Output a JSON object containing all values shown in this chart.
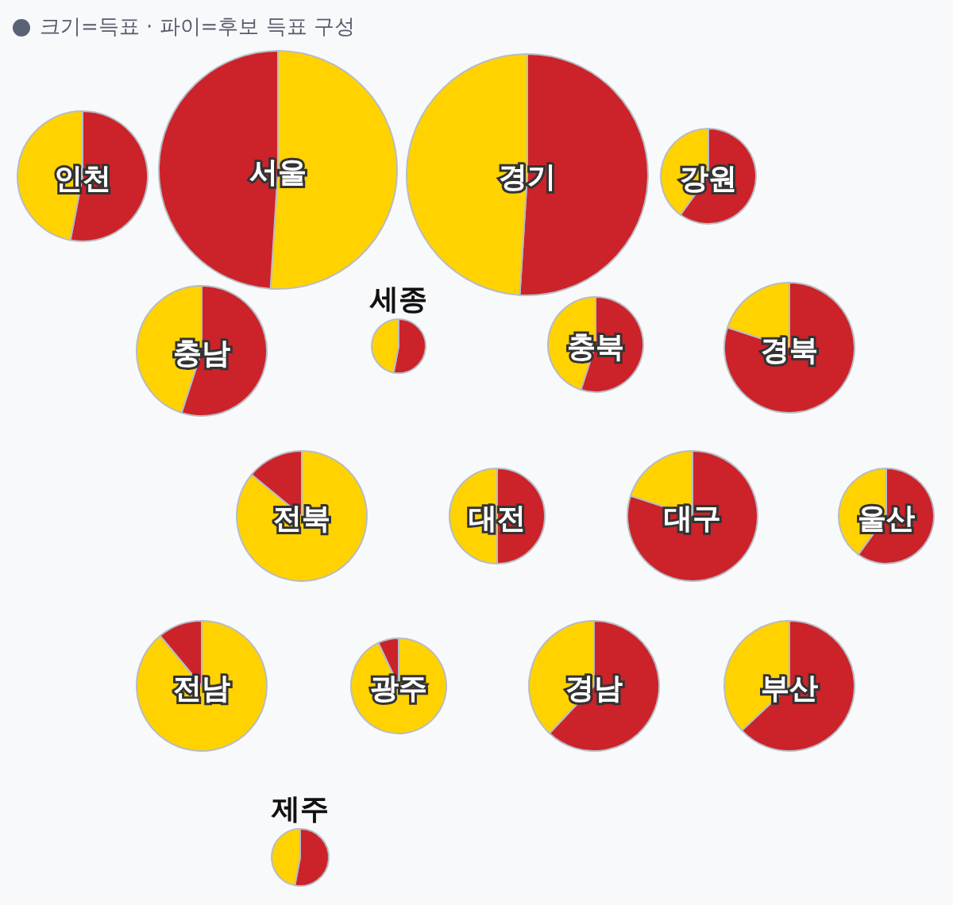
{
  "chart_data": [
    {
      "type": "pie",
      "title": "인천",
      "categories": [
        null,
        null
      ],
      "values": [
        53,
        47
      ],
      "colors": [
        "#cc2229",
        "#ffd200"
      ],
      "annotations": [
        "크기=득표 · 파이=후보 득표 구성"
      ]
    },
    {
      "type": "pie",
      "title": "서울",
      "categories": [
        null,
        null
      ],
      "values": [
        51,
        49
      ],
      "colors": [
        "#ffd200",
        "#cc2229"
      ]
    },
    {
      "type": "pie",
      "title": "경기",
      "categories": [
        null,
        null
      ],
      "values": [
        51,
        49
      ],
      "colors": [
        "#cc2229",
        "#ffd200"
      ]
    },
    {
      "type": "pie",
      "title": "강원",
      "categories": [
        null,
        null
      ],
      "values": [
        60,
        40
      ],
      "colors": [
        "#cc2229",
        "#ffd200"
      ]
    },
    {
      "type": "pie",
      "title": "충남",
      "categories": [
        null,
        null
      ],
      "values": [
        55,
        45
      ],
      "colors": [
        "#cc2229",
        "#ffd200"
      ]
    },
    {
      "type": "pie",
      "title": "세종",
      "categories": [
        null,
        null
      ],
      "values": [
        53,
        47
      ],
      "colors": [
        "#cc2229",
        "#ffd200"
      ]
    },
    {
      "type": "pie",
      "title": "충북",
      "categories": [
        null,
        null
      ],
      "values": [
        55,
        45
      ],
      "colors": [
        "#cc2229",
        "#ffd200"
      ]
    },
    {
      "type": "pie",
      "title": "경북",
      "categories": [
        null,
        null
      ],
      "values": [
        80,
        20
      ],
      "colors": [
        "#cc2229",
        "#ffd200"
      ]
    },
    {
      "type": "pie",
      "title": "전북",
      "categories": [
        null,
        null
      ],
      "values": [
        86,
        14
      ],
      "colors": [
        "#ffd200",
        "#cc2229"
      ]
    },
    {
      "type": "pie",
      "title": "대전",
      "categories": [
        null,
        null
      ],
      "values": [
        50,
        50
      ],
      "colors": [
        "#cc2229",
        "#ffd200"
      ]
    },
    {
      "type": "pie",
      "title": "대구",
      "categories": [
        null,
        null
      ],
      "values": [
        80,
        20
      ],
      "colors": [
        "#cc2229",
        "#ffd200"
      ]
    },
    {
      "type": "pie",
      "title": "울산",
      "categories": [
        null,
        null
      ],
      "values": [
        60,
        40
      ],
      "colors": [
        "#cc2229",
        "#ffd200"
      ]
    },
    {
      "type": "pie",
      "title": "전남",
      "categories": [
        null,
        null
      ],
      "values": [
        89,
        11
      ],
      "colors": [
        "#ffd200",
        "#cc2229"
      ]
    },
    {
      "type": "pie",
      "title": "광주",
      "categories": [
        null,
        null
      ],
      "values": [
        93,
        7
      ],
      "colors": [
        "#ffd200",
        "#cc2229"
      ]
    },
    {
      "type": "pie",
      "title": "경남",
      "categories": [
        null,
        null
      ],
      "values": [
        62,
        38
      ],
      "colors": [
        "#cc2229",
        "#ffd200"
      ]
    },
    {
      "type": "pie",
      "title": "부산",
      "categories": [
        null,
        null
      ],
      "values": [
        63,
        37
      ],
      "colors": [
        "#cc2229",
        "#ffd200"
      ]
    },
    {
      "type": "pie",
      "title": "제주",
      "categories": [
        null,
        null
      ],
      "values": [
        53,
        47
      ],
      "colors": [
        "#cc2229",
        "#ffd200"
      ]
    }
  ]
}
